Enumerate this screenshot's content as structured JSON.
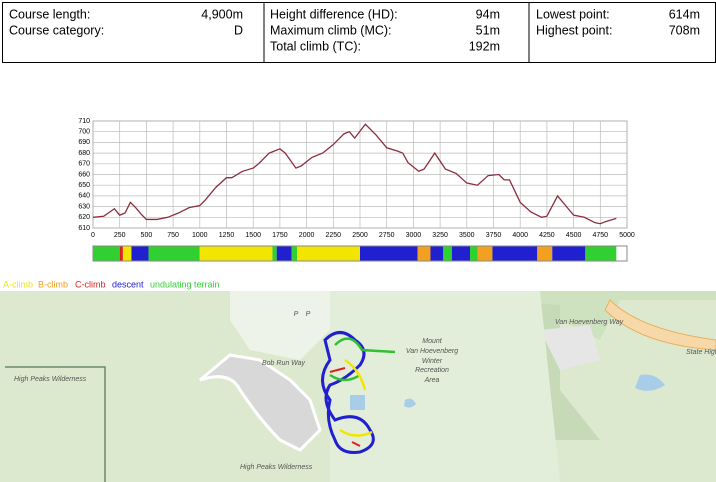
{
  "info": {
    "groups": [
      [
        {
          "label": "Course length:",
          "value": "4,900m"
        },
        {
          "label": "Course category:",
          "value": "D"
        }
      ],
      [
        {
          "label": "Height difference (HD):",
          "value": "94m"
        },
        {
          "label": "Maximum climb (MC):",
          "value": "51m"
        },
        {
          "label": "Total climb (TC):",
          "value": "192m"
        }
      ],
      [
        {
          "label": "Lowest point:",
          "value": "614m"
        },
        {
          "label": "Highest point:",
          "value": "708m"
        }
      ]
    ]
  },
  "chart_data": {
    "type": "line",
    "color": "#8b2e3e",
    "grid": true,
    "x": [
      0,
      100,
      200,
      250,
      300,
      350,
      400,
      450,
      500,
      600,
      700,
      800,
      900,
      1000,
      1050,
      1150,
      1250,
      1300,
      1400,
      1500,
      1550,
      1650,
      1750,
      1800,
      1900,
      1950,
      2050,
      2150,
      2250,
      2350,
      2400,
      2450,
      2550,
      2650,
      2750,
      2850,
      2900,
      2950,
      3050,
      3100,
      3200,
      3300,
      3400,
      3500,
      3600,
      3700,
      3800,
      3850,
      3900,
      4000,
      4100,
      4200,
      4250,
      4350,
      4450,
      4500,
      4600,
      4700,
      4750,
      4800,
      4900
    ],
    "values": [
      620,
      621,
      628,
      622,
      624,
      634,
      629,
      623,
      618,
      618,
      620,
      624,
      629,
      631,
      636,
      648,
      657,
      657,
      663,
      666,
      670,
      680,
      684,
      680,
      666,
      668,
      676,
      680,
      688,
      698,
      700,
      694,
      707,
      697,
      685,
      682,
      680,
      671,
      663,
      665,
      680,
      665,
      661,
      652,
      650,
      659,
      660,
      655,
      655,
      634,
      625,
      620,
      621,
      640,
      628,
      622,
      620,
      615,
      614,
      616,
      619
    ],
    "xlim": [
      0,
      5000
    ],
    "xticks": [
      0,
      250,
      500,
      750,
      1000,
      1250,
      1500,
      1750,
      2000,
      2250,
      2500,
      2750,
      3000,
      3250,
      3500,
      3750,
      4000,
      4250,
      4500,
      4750,
      5000
    ],
    "ylim": [
      610,
      710
    ],
    "yticks": [
      610,
      620,
      630,
      640,
      650,
      660,
      670,
      680,
      690,
      700,
      710
    ]
  },
  "terrain": {
    "legend": [
      {
        "name": "A-climb",
        "color": "#f2e600"
      },
      {
        "name": "B-climb",
        "color": "#f2a020"
      },
      {
        "name": "C-climb",
        "color": "#e02020"
      },
      {
        "name": "descent",
        "color": "#2020d0"
      },
      {
        "name": "undulating terrain",
        "color": "#30d030"
      }
    ],
    "segments": [
      {
        "from": 0,
        "to": 250,
        "kind": 4
      },
      {
        "from": 250,
        "to": 280,
        "kind": 2
      },
      {
        "from": 280,
        "to": 360,
        "kind": 0
      },
      {
        "from": 360,
        "to": 520,
        "kind": 3
      },
      {
        "from": 520,
        "to": 1000,
        "kind": 4
      },
      {
        "from": 1000,
        "to": 1680,
        "kind": 0
      },
      {
        "from": 1680,
        "to": 1720,
        "kind": 4
      },
      {
        "from": 1720,
        "to": 1860,
        "kind": 3
      },
      {
        "from": 1860,
        "to": 1910,
        "kind": 4
      },
      {
        "from": 1910,
        "to": 2500,
        "kind": 0
      },
      {
        "from": 2500,
        "to": 3040,
        "kind": 3
      },
      {
        "from": 3040,
        "to": 3160,
        "kind": 1
      },
      {
        "from": 3160,
        "to": 3280,
        "kind": 3
      },
      {
        "from": 3280,
        "to": 3360,
        "kind": 4
      },
      {
        "from": 3360,
        "to": 3530,
        "kind": 3
      },
      {
        "from": 3530,
        "to": 3600,
        "kind": 4
      },
      {
        "from": 3600,
        "to": 3740,
        "kind": 1
      },
      {
        "from": 3740,
        "to": 4160,
        "kind": 3
      },
      {
        "from": 4160,
        "to": 4300,
        "kind": 1
      },
      {
        "from": 4300,
        "to": 4610,
        "kind": 3
      },
      {
        "from": 4610,
        "to": 4900,
        "kind": 4
      }
    ]
  },
  "map": {
    "labels": [
      "Mount",
      "Van Hoevenberg",
      "Winter",
      "Recreation",
      "Area",
      "High Peaks Wilderness",
      "High Peaks Wilderness",
      "Bob Run Way",
      "Van Hoevenberg Way",
      "State Highw",
      "P",
      "P"
    ]
  }
}
